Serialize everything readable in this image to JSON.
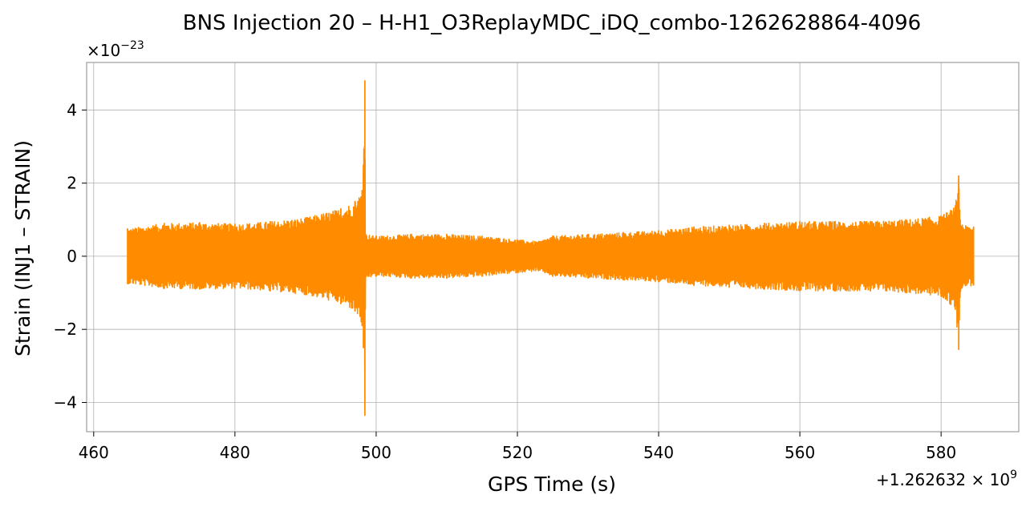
{
  "chart_data": {
    "type": "line",
    "title": "BNS Injection 20 – H-H1_O3ReplayMDC_iDQ_combo-1262628864-4096",
    "xlabel": "GPS Time (s)",
    "ylabel": "Strain (INJ1 – STRAIN)",
    "y_scale_label": "×10",
    "y_scale_exp": "−23",
    "x_offset_label": "+1.262632 × 10",
    "x_offset_exp": "9",
    "xlim": [
      459,
      591
    ],
    "ylim": [
      -4.8,
      5.3
    ],
    "x_ticks": [
      460,
      480,
      500,
      520,
      540,
      560,
      580
    ],
    "x_tick_labels": [
      "460",
      "480",
      "500",
      "520",
      "540",
      "560",
      "580"
    ],
    "y_ticks": [
      -4,
      -2,
      0,
      2,
      4
    ],
    "y_tick_labels": [
      "−4",
      "−2",
      "0",
      "2",
      "4"
    ],
    "grid": true,
    "line_color": "#ff8c00",
    "series": [
      {
        "x": [
          464.8,
          470,
          475,
          480,
          485,
          490,
          495,
          497,
          498.0,
          498.2,
          498.4,
          498.5,
          500,
          505,
          510,
          515,
          520,
          523,
          525,
          530,
          535,
          540,
          545,
          550,
          555,
          560,
          565,
          570,
          575,
          580,
          582.0,
          582.5,
          582.7,
          583,
          584.6
        ],
        "upper": [
          0.75,
          0.9,
          0.92,
          0.88,
          0.95,
          1.05,
          1.3,
          1.5,
          1.8,
          2.5,
          4.8,
          0.6,
          0.55,
          0.6,
          0.6,
          0.55,
          0.45,
          0.4,
          0.55,
          0.6,
          0.65,
          0.7,
          0.8,
          0.85,
          0.9,
          0.95,
          0.95,
          0.95,
          1.0,
          1.1,
          1.35,
          2.2,
          1.0,
          0.85,
          0.8
        ],
        "lower": [
          -0.75,
          -0.88,
          -0.9,
          -0.88,
          -0.95,
          -1.05,
          -1.3,
          -1.5,
          -1.9,
          -2.5,
          -4.35,
          -0.6,
          -0.55,
          -0.6,
          -0.6,
          -0.55,
          -0.45,
          -0.4,
          -0.55,
          -0.6,
          -0.65,
          -0.7,
          -0.8,
          -0.85,
          -0.9,
          -0.95,
          -0.95,
          -0.95,
          -1.0,
          -1.1,
          -1.45,
          -2.55,
          -1.0,
          -0.85,
          -0.8
        ]
      }
    ]
  }
}
